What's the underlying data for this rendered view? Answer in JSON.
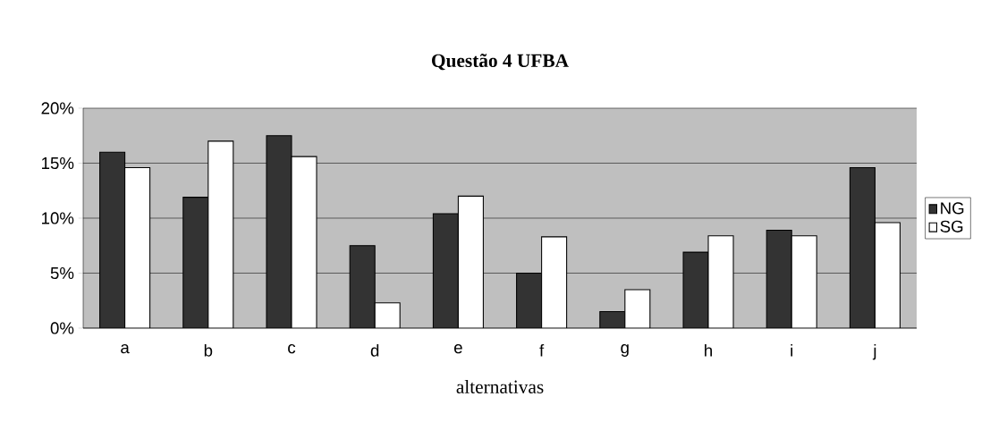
{
  "chart_data": {
    "type": "bar",
    "title": "Questão 4 UFBA",
    "xlabel": "alternativas",
    "categories": [
      "a",
      "b",
      "c",
      "d",
      "e",
      "f",
      "g",
      "h",
      "i",
      "j"
    ],
    "series": [
      {
        "name": "NG",
        "color": "#333333",
        "values": [
          16.0,
          11.9,
          17.5,
          7.5,
          10.4,
          5.0,
          1.5,
          6.9,
          8.9,
          14.6
        ]
      },
      {
        "name": "SG",
        "color": "#ffffff",
        "values": [
          14.6,
          17.0,
          15.6,
          2.3,
          12.0,
          8.3,
          3.5,
          8.4,
          8.4,
          9.6
        ]
      }
    ],
    "ylim": [
      0,
      20
    ],
    "yticks": [
      {
        "value": 0,
        "label": "0%"
      },
      {
        "value": 5,
        "label": "5%"
      },
      {
        "value": 10,
        "label": "10%"
      },
      {
        "value": 15,
        "label": "15%"
      },
      {
        "value": 20,
        "label": "20%"
      }
    ],
    "grid": "y",
    "legend": "right"
  }
}
